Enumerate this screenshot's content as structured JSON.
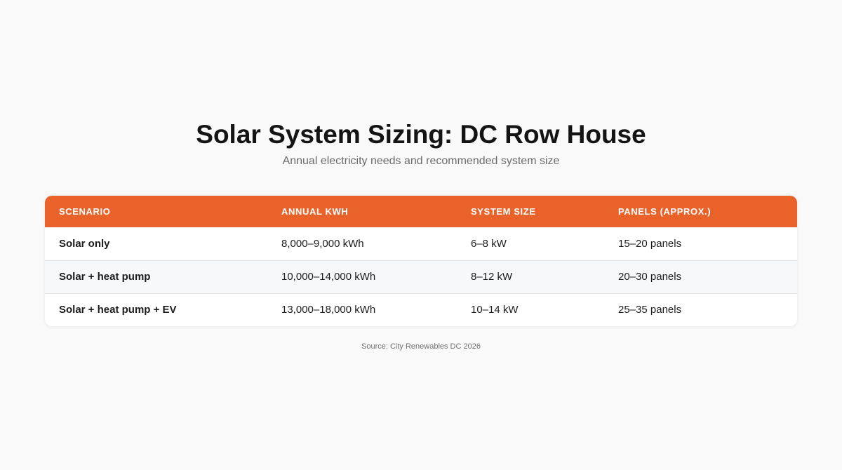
{
  "header": {
    "title": "Solar System Sizing: DC Row House",
    "subtitle": "Annual electricity needs and recommended system size"
  },
  "table": {
    "columns": [
      "SCENARIO",
      "ANNUAL KWH",
      "SYSTEM SIZE",
      "PANELS (APPROX.)"
    ],
    "rows": [
      [
        "Solar only",
        "8,000–9,000 kWh",
        "6–8 kW",
        "15–20 panels"
      ],
      [
        "Solar + heat pump",
        "10,000–14,000 kWh",
        "8–12 kW",
        "20–30 panels"
      ],
      [
        "Solar + heat pump + EV",
        "13,000–18,000 kWh",
        "10–14 kW",
        "25–35 panels"
      ]
    ]
  },
  "footer": {
    "source": "Source: City Renewables DC 2026"
  },
  "colors": {
    "header_accent": "#e8622a",
    "background": "#f9f9f9",
    "zebra_row": "#f6f8fa"
  }
}
